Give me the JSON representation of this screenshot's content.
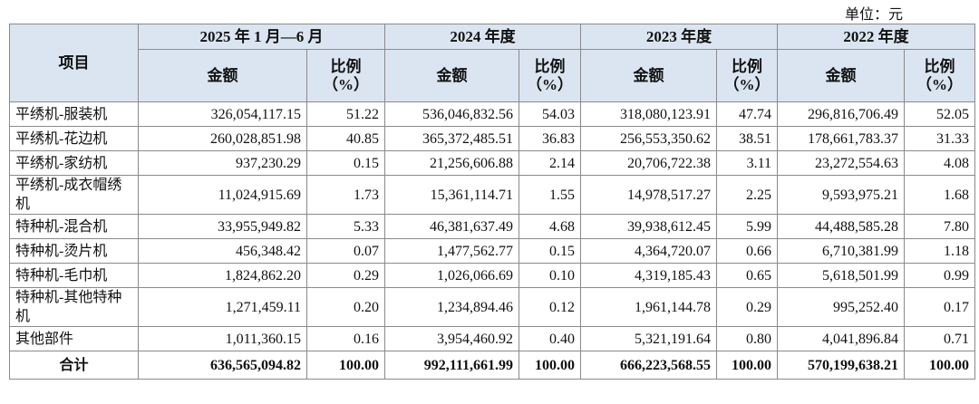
{
  "unit_label": "单位：元",
  "header": {
    "item": "项目",
    "periods": [
      "2025 年 1 月—6 月",
      "2024 年度",
      "2023 年度",
      "2022 年度"
    ],
    "amount_label": "金额",
    "ratio_label": "比例",
    "ratio_unit": "（%）"
  },
  "table": {
    "rows": [
      [
        "平绣机-服装机",
        "326,054,117.15",
        "51.22",
        "536,046,832.56",
        "54.03",
        "318,080,123.91",
        "47.74",
        "296,816,706.49",
        "52.05"
      ],
      [
        "平绣机-花边机",
        "260,028,851.98",
        "40.85",
        "365,372,485.51",
        "36.83",
        "256,553,350.62",
        "38.51",
        "178,661,783.37",
        "31.33"
      ],
      [
        "平绣机-家纺机",
        "937,230.29",
        "0.15",
        "21,256,606.88",
        "2.14",
        "20,706,722.38",
        "3.11",
        "23,272,554.63",
        "4.08"
      ],
      [
        "平绣机-成衣帽绣机",
        "11,024,915.69",
        "1.73",
        "15,361,114.71",
        "1.55",
        "14,978,517.27",
        "2.25",
        "9,593,975.21",
        "1.68"
      ],
      [
        "特种机-混合机",
        "33,955,949.82",
        "5.33",
        "46,381,637.49",
        "4.68",
        "39,938,612.45",
        "5.99",
        "44,488,585.28",
        "7.80"
      ],
      [
        "特种机-烫片机",
        "456,348.42",
        "0.07",
        "1,477,562.77",
        "0.15",
        "4,364,720.07",
        "0.66",
        "6,710,381.99",
        "1.18"
      ],
      [
        "特种机-毛巾机",
        "1,824,862.20",
        "0.29",
        "1,026,066.69",
        "0.10",
        "4,319,185.43",
        "0.65",
        "5,618,501.99",
        "0.99"
      ],
      [
        "特种机-其他特种机",
        "1,271,459.11",
        "0.20",
        "1,234,894.46",
        "0.12",
        "1,961,144.78",
        "0.29",
        "995,252.40",
        "0.17"
      ],
      [
        "其他部件",
        "1,011,360.15",
        "0.16",
        "3,954,460.92",
        "0.40",
        "5,321,191.64",
        "0.80",
        "4,041,896.84",
        "0.71"
      ]
    ],
    "total": [
      "合计",
      "636,565,094.82",
      "100.00",
      "992,111,661.99",
      "100.00",
      "666,223,568.55",
      "100.00",
      "570,199,638.21",
      "100.00"
    ]
  }
}
